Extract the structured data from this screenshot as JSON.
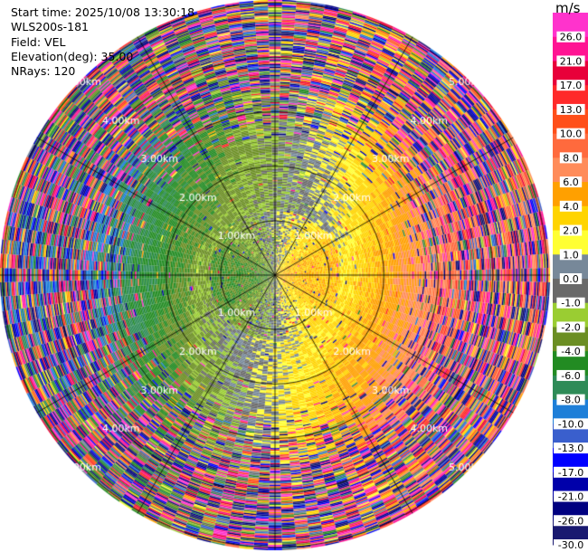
{
  "info": {
    "start_time": "Start time: 2025/10/08 13:30:18",
    "station": "WLS200s-181",
    "field": "Field: VEL",
    "elevation": "Elevation(deg): 35.00",
    "nrays": "NRays: 120"
  },
  "chart_data": {
    "type": "heatmap",
    "projection": "polar-ppi",
    "field": "VEL",
    "units": "m/s",
    "nrays": 120,
    "ring_labels": [
      "1.00km",
      "2.00km",
      "3.00km",
      "4.00km",
      "5.00km"
    ],
    "ring_ranges_km": [
      1,
      2,
      3,
      4,
      5
    ],
    "max_range_km": 5.05,
    "colorbar": {
      "unit_label": "m/s",
      "tick_labels": [
        "26.0",
        "21.0",
        "17.0",
        "13.0",
        "10.0",
        "8.0",
        "6.0",
        "4.0",
        "2.0",
        "1.0",
        "0.0",
        "-1.0",
        "-2.0",
        "-4.0",
        "-6.0",
        "-8.0",
        "-10.0",
        "-13.0",
        "-17.0",
        "-21.0",
        "-26.0",
        "-30.0"
      ],
      "colors_top_to_bottom": [
        "#ff33cc",
        "#ff1493",
        "#e8003a",
        "#ff2a2a",
        "#ff4f19",
        "#ff6a3d",
        "#ff8c5a",
        "#ffa000",
        "#ffd400",
        "#ffff33",
        "#778899",
        "#696969",
        "#9acd32",
        "#6b8e23",
        "#228b22",
        "#2e8b57",
        "#1e7fd8",
        "#3a5fcd",
        "#0000ff",
        "#0000aa",
        "#000080",
        "#191970"
      ]
    },
    "radial_velocity_pattern": {
      "inner_region_km": [
        0,
        1.2
      ],
      "mid_region_km": [
        1.2,
        3.5
      ],
      "outer_noise_region_km": [
        3.5,
        5.05
      ],
      "east_sector_velocity_ms": [
        2,
        10
      ],
      "west_sector_velocity_ms": [
        -10,
        -2
      ]
    }
  }
}
